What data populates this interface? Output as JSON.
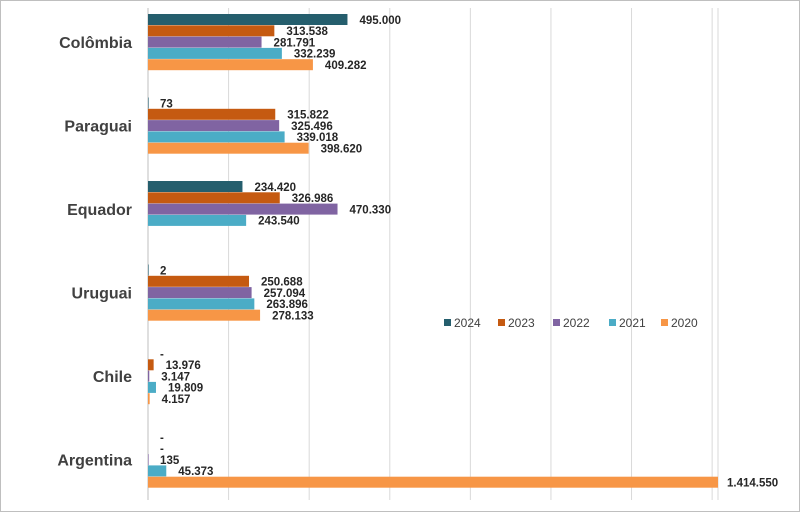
{
  "chart_data": {
    "type": "bar",
    "orientation": "horizontal",
    "categories": [
      "Colômbia",
      "Paraguai",
      "Equador",
      "Uruguai",
      "Chile",
      "Argentina"
    ],
    "series": [
      {
        "name": "2024",
        "color": "#255e6d",
        "values": [
          495000,
          73,
          234420,
          2,
          0,
          0
        ],
        "labels": [
          "495.000",
          "73",
          "234.420",
          "2",
          "-",
          "-"
        ]
      },
      {
        "name": "2023",
        "color": "#c55a11",
        "values": [
          313538,
          315822,
          326986,
          250688,
          13976,
          0
        ],
        "labels": [
          "313.538",
          "315.822",
          "326.986",
          "250.688",
          "13.976",
          "-"
        ]
      },
      {
        "name": "2022",
        "color": "#8064a2",
        "values": [
          281791,
          325496,
          470330,
          257094,
          3147,
          135
        ],
        "labels": [
          "281.791",
          "325.496",
          "470.330",
          "257.094",
          "3.147",
          "135"
        ]
      },
      {
        "name": "2021",
        "color": "#4bacc6",
        "values": [
          332239,
          339018,
          243540,
          263896,
          19809,
          45373
        ],
        "labels": [
          "332.239",
          "339.018",
          "243.540",
          "263.896",
          "19.809",
          "45.373"
        ]
      },
      {
        "name": "2020",
        "color": "#f79646",
        "values": [
          409282,
          398620,
          null,
          278133,
          4157,
          1414550
        ],
        "labels": [
          "409.282",
          "398.620",
          null,
          "278.133",
          "4.157",
          "1.414.550"
        ]
      }
    ],
    "xlim": [
      0,
      1414550
    ],
    "grid": true,
    "legend": {
      "position": "right-middle",
      "entries": [
        "2024",
        "2023",
        "2022",
        "2021",
        "2020"
      ]
    },
    "title": ""
  }
}
